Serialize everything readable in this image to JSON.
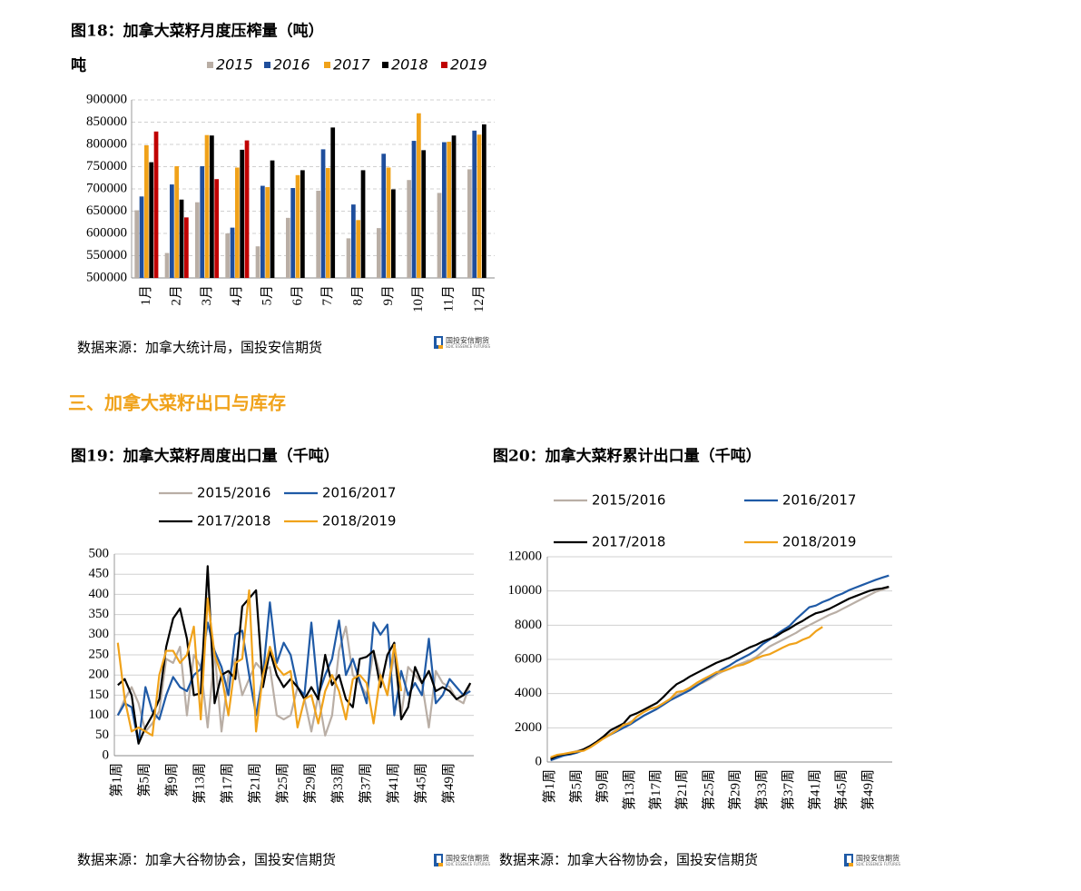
{
  "chart_data": [
    {
      "type": "bar",
      "title": "图18：加拿大菜籽月度压榨量（吨）",
      "y_label": "吨",
      "categories": [
        "1月",
        "2月",
        "3月",
        "4月",
        "5月",
        "6月",
        "7月",
        "8月",
        "9月",
        "10月",
        "11月",
        "12月"
      ],
      "series": [
        {
          "name": "2015",
          "color": "#b9aea5",
          "values": [
            652000,
            556000,
            670000,
            600000,
            571000,
            635000,
            696000,
            589000,
            612000,
            720000,
            691000,
            744000
          ]
        },
        {
          "name": "2016",
          "color": "#1f4e9c",
          "values": [
            683000,
            710000,
            751000,
            613000,
            707000,
            702000,
            789000,
            665000,
            779000,
            808000,
            805000,
            831000
          ]
        },
        {
          "name": "2017",
          "color": "#f0a21a",
          "values": [
            798000,
            751000,
            821000,
            748000,
            704000,
            731000,
            747000,
            630000,
            748000,
            870000,
            806000,
            822000
          ]
        },
        {
          "name": "2018",
          "color": "#000000",
          "values": [
            760000,
            676000,
            820000,
            788000,
            764000,
            742000,
            838000,
            742000,
            699000,
            787000,
            820000,
            845000
          ]
        },
        {
          "name": "2019",
          "color": "#c00000",
          "values": [
            829000,
            636000,
            722000,
            809000,
            null,
            null,
            null,
            null,
            null,
            null,
            null,
            null
          ]
        }
      ],
      "ylim": [
        500000,
        900000
      ],
      "yticks": [
        500000,
        550000,
        600000,
        650000,
        700000,
        750000,
        800000,
        850000,
        900000
      ],
      "grid": true,
      "source": "数据来源：加拿大统计局，国投安信期货"
    },
    {
      "type": "line",
      "title": "图19：加拿大菜籽周度出口量（千吨）",
      "categories": [
        "第1周",
        null,
        null,
        null,
        "第5周",
        null,
        null,
        null,
        "第9周",
        null,
        null,
        null,
        "第13周",
        null,
        null,
        null,
        "第17周",
        null,
        null,
        null,
        "第21周",
        null,
        null,
        null,
        "第25周",
        null,
        null,
        null,
        "第29周",
        null,
        null,
        null,
        "第33周",
        null,
        null,
        null,
        "第37周",
        null,
        null,
        null,
        "第41周",
        null,
        null,
        null,
        "第45周",
        null,
        null,
        null,
        "第49周",
        null,
        null,
        null
      ],
      "series": [
        {
          "name": "2015/2016",
          "color": "#b9aea5",
          "values": [
            100,
            140,
            170,
            130,
            60,
            80,
            110,
            240,
            230,
            270,
            100,
            250,
            220,
            70,
            260,
            60,
            200,
            240,
            150,
            190,
            230,
            210,
            220,
            100,
            90,
            100,
            170,
            140,
            60,
            150,
            50,
            100,
            260,
            320,
            200,
            180,
            150,
            260,
            200,
            150,
            250,
            100,
            220,
            200,
            180,
            70,
            210,
            180,
            170,
            140,
            130,
            180
          ]
        },
        {
          "name": "2016/2017",
          "color": "#1f5aa6",
          "values": [
            100,
            130,
            120,
            30,
            170,
            110,
            90,
            150,
            195,
            170,
            160,
            200,
            215,
            330,
            260,
            220,
            150,
            300,
            310,
            200,
            100,
            200,
            380,
            230,
            280,
            250,
            170,
            150,
            330,
            150,
            200,
            240,
            335,
            200,
            240,
            185,
            130,
            330,
            300,
            325,
            100,
            210,
            150,
            180,
            150,
            290,
            130,
            150,
            190,
            170,
            150,
            160
          ]
        },
        {
          "name": "2017/2018",
          "color": "#000000",
          "values": [
            175,
            190,
            150,
            30,
            70,
            100,
            140,
            270,
            340,
            365,
            290,
            150,
            155,
            470,
            130,
            200,
            210,
            190,
            370,
            390,
            410,
            170,
            260,
            200,
            170,
            190,
            170,
            140,
            170,
            140,
            250,
            175,
            200,
            140,
            120,
            240,
            245,
            260,
            170,
            250,
            280,
            90,
            120,
            220,
            180,
            210,
            160,
            170,
            160,
            140,
            150,
            180
          ]
        },
        {
          "name": "2018/2019",
          "color": "#f0a21a",
          "values": [
            280,
            140,
            60,
            70,
            60,
            50,
            200,
            260,
            260,
            230,
            250,
            320,
            90,
            390,
            250,
            200,
            100,
            230,
            240,
            410,
            60,
            200,
            270,
            220,
            200,
            210,
            70,
            140,
            150,
            80,
            160,
            200,
            160,
            90,
            190,
            200,
            180,
            80,
            200,
            150,
            275,
            160,
            null,
            null,
            null,
            null,
            null,
            null,
            null,
            null,
            null,
            null
          ]
        }
      ],
      "ylim": [
        0,
        500
      ],
      "yticks": [
        0,
        50,
        100,
        150,
        200,
        250,
        300,
        350,
        400,
        450,
        500
      ],
      "grid": true,
      "source": "数据来源：加拿大谷物协会，国投安信期货"
    },
    {
      "type": "line",
      "title": "图20：加拿大菜籽累计出口量（千吨）",
      "categories": [
        "第1周",
        null,
        null,
        null,
        "第5周",
        null,
        null,
        null,
        "第9周",
        null,
        null,
        null,
        "第13周",
        null,
        null,
        null,
        "第17周",
        null,
        null,
        null,
        "第21周",
        null,
        null,
        null,
        "第25周",
        null,
        null,
        null,
        "第29周",
        null,
        null,
        null,
        "第33周",
        null,
        null,
        null,
        "第37周",
        null,
        null,
        null,
        "第41周",
        null,
        null,
        null,
        "第45周",
        null,
        null,
        null,
        "第49周",
        null,
        null,
        null
      ],
      "series": [
        {
          "name": "2015/2016",
          "color": "#b9aea5",
          "values": [
            100,
            250,
            400,
            550,
            650,
            750,
            900,
            1150,
            1400,
            1650,
            1900,
            2100,
            2350,
            2450,
            2700,
            2900,
            3100,
            3400,
            3650,
            3900,
            4100,
            4300,
            4500,
            4650,
            4850,
            5100,
            5300,
            5450,
            5650,
            5800,
            5950,
            6150,
            6450,
            6750,
            6950,
            7150,
            7350,
            7550,
            7800,
            8000,
            8200,
            8400,
            8600,
            8750,
            8950,
            9150,
            9350,
            9550,
            9750,
            9950,
            10080,
            10200
          ]
        },
        {
          "name": "2016/2017",
          "color": "#1f5aa6",
          "values": [
            100,
            250,
            380,
            450,
            550,
            700,
            900,
            1150,
            1400,
            1600,
            1800,
            2000,
            2200,
            2450,
            2700,
            2900,
            3100,
            3350,
            3600,
            3800,
            4000,
            4200,
            4450,
            4700,
            4950,
            5200,
            5450,
            5650,
            5900,
            6100,
            6300,
            6550,
            6900,
            7150,
            7450,
            7700,
            7950,
            8350,
            8700,
            9050,
            9150,
            9350,
            9500,
            9700,
            9850,
            10050,
            10200,
            10350,
            10500,
            10650,
            10780,
            10900
          ]
        },
        {
          "name": "2017/2018",
          "color": "#000000",
          "values": [
            180,
            370,
            450,
            500,
            600,
            750,
            950,
            1200,
            1500,
            1850,
            2050,
            2250,
            2700,
            2850,
            3050,
            3250,
            3450,
            3800,
            4200,
            4550,
            4750,
            5000,
            5200,
            5400,
            5600,
            5800,
            5950,
            6100,
            6300,
            6500,
            6700,
            6850,
            7050,
            7200,
            7350,
            7600,
            7800,
            8050,
            8250,
            8500,
            8700,
            8800,
            8950,
            9150,
            9350,
            9550,
            9700,
            9850,
            10000,
            10100,
            10150,
            10250
          ]
        },
        {
          "name": "2018/2019",
          "color": "#f0a21a",
          "values": [
            280,
            420,
            480,
            550,
            610,
            660,
            860,
            1120,
            1380,
            1610,
            1860,
            2180,
            2270,
            2660,
            2910,
            3110,
            3210,
            3440,
            3680,
            4090,
            4150,
            4350,
            4620,
            4840,
            5040,
            5250,
            5320,
            5460,
            5610,
            5690,
            5850,
            6050,
            6210,
            6300,
            6490,
            6690,
            6870,
            6950,
            7150,
            7300,
            7650,
            7900,
            null,
            null,
            null,
            null,
            null,
            null,
            null,
            null,
            null,
            null
          ]
        }
      ],
      "ylim": [
        0,
        12000
      ],
      "yticks": [
        0,
        2000,
        4000,
        6000,
        8000,
        10000,
        12000
      ],
      "grid": true,
      "source": "数据来源：加拿大谷物协会，国投安信期货"
    }
  ],
  "section_heading": "三、加拿大菜籽出口与库存",
  "logo": {
    "name": "国投安信期货",
    "english": "SDIC ESSENCE FUTURES"
  }
}
